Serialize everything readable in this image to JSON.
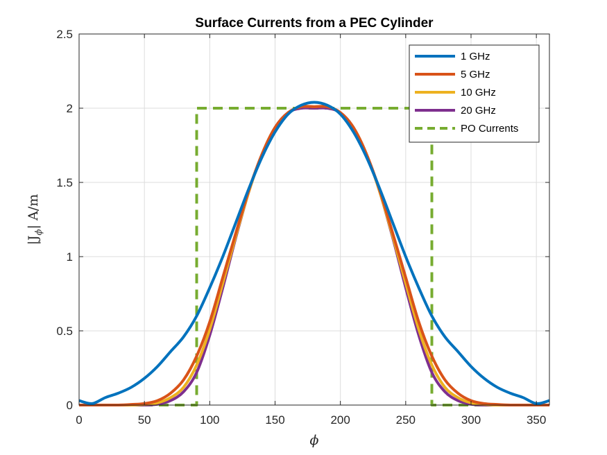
{
  "chart_data": {
    "type": "line",
    "title": "Surface Currents from a PEC Cylinder",
    "xlabel": "ϕ",
    "ylabel": "|Jϕ| A/m",
    "ylabel_main": "|J",
    "ylabel_sub": "ϕ",
    "ylabel_tail": "| A/m",
    "xlim": [
      0,
      360
    ],
    "ylim": [
      0,
      2.5
    ],
    "xticks": [
      0,
      50,
      100,
      150,
      200,
      250,
      300,
      350
    ],
    "yticks": [
      0,
      0.5,
      1,
      1.5,
      2,
      2.5
    ],
    "xtick_labels": [
      "0",
      "50",
      "100",
      "150",
      "200",
      "250",
      "300",
      "350"
    ],
    "ytick_labels": [
      "0",
      "0.5",
      "1",
      "1.5",
      "2",
      "2.5"
    ],
    "grid": true,
    "legend_position": "top-right",
    "series": [
      {
        "name": "1 GHz",
        "color": "#0072BD",
        "style": "solid",
        "x": [
          0,
          10,
          20,
          30,
          40,
          50,
          60,
          70,
          80,
          90,
          100,
          110,
          120,
          130,
          140,
          150,
          160,
          170,
          180,
          190,
          200,
          210,
          220,
          230,
          240,
          250,
          260,
          270,
          280,
          290,
          300,
          310,
          320,
          330,
          340,
          350,
          360
        ],
        "y": [
          0.03,
          0.01,
          0.05,
          0.08,
          0.12,
          0.18,
          0.26,
          0.36,
          0.46,
          0.6,
          0.79,
          1.0,
          1.23,
          1.46,
          1.67,
          1.84,
          1.96,
          2.02,
          2.04,
          2.02,
          1.96,
          1.84,
          1.67,
          1.46,
          1.23,
          1.0,
          0.79,
          0.6,
          0.46,
          0.36,
          0.26,
          0.18,
          0.12,
          0.08,
          0.05,
          0.01,
          0.03
        ]
      },
      {
        "name": "5 GHz",
        "color": "#D95319",
        "style": "solid",
        "x": [
          0,
          10,
          20,
          30,
          40,
          50,
          60,
          70,
          80,
          90,
          100,
          110,
          120,
          130,
          140,
          150,
          160,
          170,
          180,
          190,
          200,
          210,
          220,
          230,
          240,
          250,
          260,
          270,
          280,
          290,
          300,
          310,
          320,
          330,
          340,
          350,
          360
        ],
        "y": [
          0.0,
          0.0,
          0.0,
          0.0,
          0.004,
          0.01,
          0.03,
          0.08,
          0.17,
          0.33,
          0.56,
          0.86,
          1.16,
          1.45,
          1.69,
          1.87,
          1.97,
          2.01,
          2.01,
          2.01,
          1.97,
          1.87,
          1.69,
          1.45,
          1.16,
          0.86,
          0.56,
          0.33,
          0.17,
          0.08,
          0.03,
          0.01,
          0.004,
          0.0,
          0.0,
          0.0,
          0.0
        ]
      },
      {
        "name": "10 GHz",
        "color": "#EDB120",
        "style": "solid",
        "x": [
          0,
          10,
          20,
          30,
          40,
          50,
          60,
          70,
          80,
          90,
          100,
          110,
          120,
          130,
          140,
          150,
          160,
          170,
          180,
          190,
          200,
          210,
          220,
          230,
          240,
          250,
          260,
          270,
          280,
          290,
          300,
          310,
          320,
          330,
          340,
          350,
          360
        ],
        "y": [
          0.0,
          0.0,
          0.0,
          0.0,
          0.0,
          0.004,
          0.015,
          0.05,
          0.12,
          0.27,
          0.51,
          0.82,
          1.14,
          1.44,
          1.69,
          1.87,
          1.97,
          2.01,
          2.01,
          2.01,
          1.97,
          1.87,
          1.69,
          1.44,
          1.14,
          0.82,
          0.51,
          0.27,
          0.12,
          0.05,
          0.015,
          0.004,
          0.0,
          0.0,
          0.0,
          0.0,
          0.0
        ]
      },
      {
        "name": "20 GHz",
        "color": "#7E2F8E",
        "style": "solid",
        "x": [
          0,
          10,
          20,
          30,
          40,
          50,
          60,
          70,
          80,
          90,
          100,
          110,
          120,
          130,
          140,
          150,
          160,
          170,
          180,
          190,
          200,
          210,
          220,
          230,
          240,
          250,
          260,
          270,
          280,
          290,
          300,
          310,
          320,
          330,
          340,
          350,
          360
        ],
        "y": [
          0.0,
          0.0,
          0.0,
          0.0,
          0.0,
          0.0,
          0.006,
          0.03,
          0.09,
          0.22,
          0.47,
          0.79,
          1.13,
          1.44,
          1.69,
          1.87,
          1.97,
          2.0,
          2.0,
          2.0,
          1.97,
          1.87,
          1.69,
          1.44,
          1.13,
          0.79,
          0.47,
          0.22,
          0.09,
          0.03,
          0.006,
          0.0,
          0.0,
          0.0,
          0.0,
          0.0,
          0.0
        ]
      },
      {
        "name": "PO Currents",
        "color": "#77AC30",
        "style": "dashed",
        "x": [
          0,
          90,
          90,
          270,
          270,
          360
        ],
        "y": [
          0,
          0,
          2,
          2,
          0,
          0
        ]
      }
    ]
  }
}
